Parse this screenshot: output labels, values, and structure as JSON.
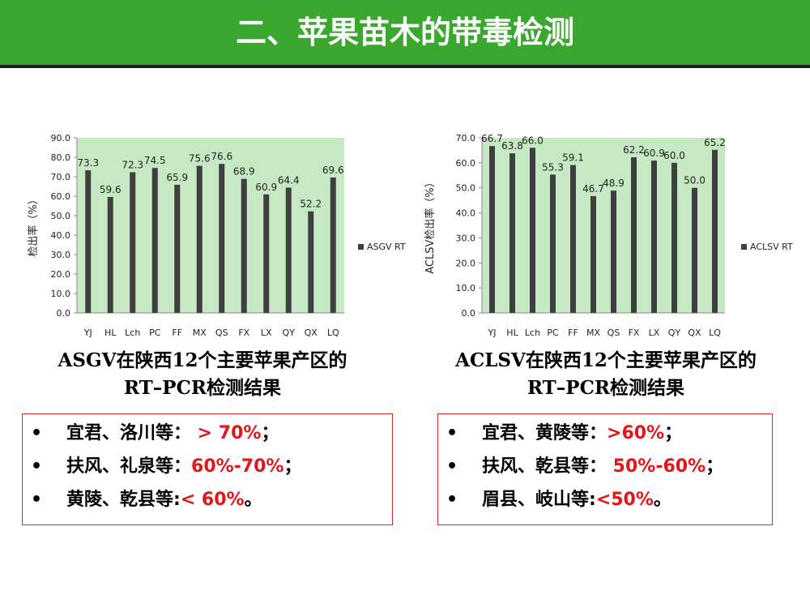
{
  "slide": {
    "title": "二、苹果苗木的带毒检测"
  },
  "chart_data": [
    {
      "type": "bar",
      "categories": [
        "YJ",
        "HL",
        "Lch",
        "PC",
        "FF",
        "MX",
        "QS",
        "FX",
        "LX",
        "QY",
        "QX",
        "LQ"
      ],
      "series": [
        {
          "name": "ASGV RT",
          "values": [
            73.3,
            59.6,
            72.3,
            74.5,
            65.9,
            75.6,
            76.6,
            68.9,
            60.9,
            64.4,
            52.2,
            69.6
          ]
        }
      ],
      "value_labels": [
        "73.3",
        "59.6",
        "72.3",
        "74.5",
        "65.9",
        "75.6",
        "76.6",
        "68.9",
        "60.9",
        "64.4",
        "52.2",
        "69.6"
      ],
      "ylabel": "检出率（%）",
      "ylim": [
        0,
        90
      ],
      "yticks": [
        "0.0",
        "10.0",
        "20.0",
        "30.0",
        "40.0",
        "50.0",
        "60.0",
        "70.0",
        "80.0",
        "90.0"
      ],
      "legend": "right",
      "colors": {
        "bar": "#3f3f3f",
        "plot_bg": "#c6e8c2"
      }
    },
    {
      "type": "bar",
      "categories": [
        "YJ",
        "HL",
        "Lch",
        "PC",
        "FF",
        "MX",
        "QS",
        "FX",
        "LX",
        "QY",
        "QX",
        "LQ"
      ],
      "series": [
        {
          "name": "ACLSV RT",
          "values": [
            66.7,
            63.8,
            66.0,
            55.3,
            59.1,
            46.7,
            48.9,
            62.2,
            60.9,
            60.0,
            50.0,
            65.2
          ]
        }
      ],
      "value_labels": [
        "66.7",
        "63.8",
        "66.0",
        "55.3",
        "59.1",
        "46.7",
        "48.9",
        "62.2",
        "60.9",
        "60.0",
        "50.0",
        "65.2"
      ],
      "ylabel": "ACLSV检出率（%）",
      "ylim": [
        0,
        70
      ],
      "yticks": [
        "0.0",
        "10.0",
        "20.0",
        "30.0",
        "40.0",
        "50.0",
        "60.0",
        "70.0"
      ],
      "legend": "right",
      "colors": {
        "bar": "#3f3f3f",
        "plot_bg": "#c6e8c2"
      }
    }
  ],
  "captions": [
    {
      "line1": "ASGV在陕西12个主要苹果产区的",
      "line2": "RT–PCR检测结果"
    },
    {
      "line1": "ACLSV在陕西12个主要苹果产区的",
      "line2": "RT–PCR检测结果"
    }
  ],
  "boxes": [
    {
      "items": [
        {
          "bullet": "•",
          "label": "宜君、洛川等：",
          "value": " > 70%",
          "suffix": "；"
        },
        {
          "bullet": "•",
          "label": "扶风、礼泉等：",
          "value": "60%-70%",
          "suffix": "；"
        },
        {
          "bullet": "•",
          "label": "黄陵、乾县等:",
          "value": "< 60%",
          "suffix": "。"
        }
      ]
    },
    {
      "items": [
        {
          "bullet": "•",
          "label": "宜君、黄陵等：",
          "value": ">60%",
          "suffix": "；"
        },
        {
          "bullet": "•",
          "label": "扶风、乾县等：",
          "value": " 50%-60%",
          "suffix": "；"
        },
        {
          "bullet": "•",
          "label": "眉县、岐山等:",
          "value": "<50%",
          "suffix": "。"
        }
      ]
    }
  ]
}
